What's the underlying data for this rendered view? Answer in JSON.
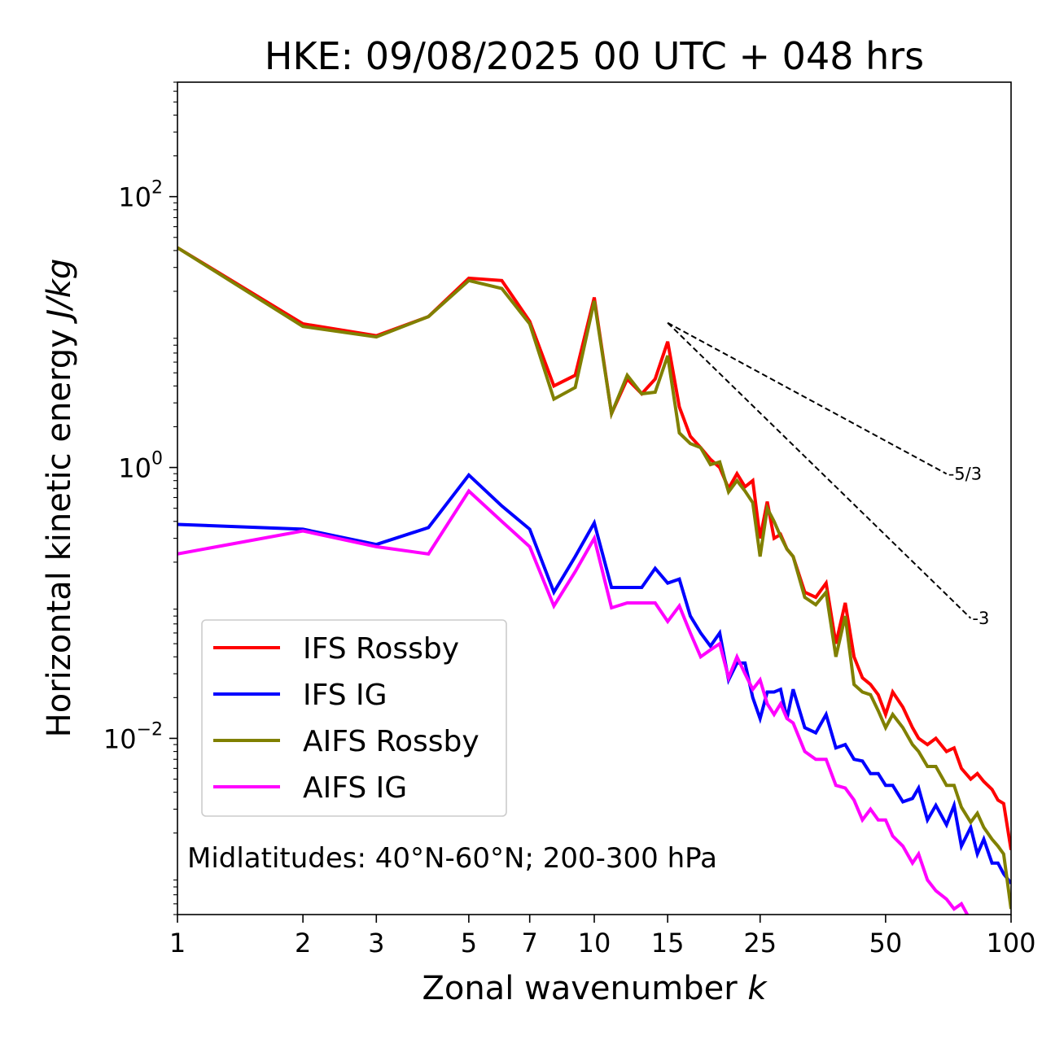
{
  "chart_data": {
    "type": "line",
    "title": "HKE: 09/08/2025 00 UTC + 048 hrs",
    "xlabel": "Zonal wavenumber",
    "xlabel_var": "k",
    "ylabel": "Horizontal kinetic energy",
    "ylabel_unit": "J/kg",
    "xscale": "log",
    "yscale": "log",
    "xlim": [
      1,
      100
    ],
    "ylim": [
      0.0005,
      700
    ],
    "xticks": [
      {
        "value": 1,
        "label": "1"
      },
      {
        "value": 2,
        "label": "2"
      },
      {
        "value": 3,
        "label": "3"
      },
      {
        "value": 5,
        "label": "5"
      },
      {
        "value": 7,
        "label": "7"
      },
      {
        "value": 10,
        "label": "10"
      },
      {
        "value": 15,
        "label": "15"
      },
      {
        "value": 25,
        "label": "25"
      },
      {
        "value": 50,
        "label": "50"
      },
      {
        "value": 100,
        "label": "100"
      }
    ],
    "yticks": [
      {
        "value": 100,
        "base": "10",
        "exp": "2"
      },
      {
        "value": 1,
        "base": "10",
        "exp": "0"
      },
      {
        "value": 0.01,
        "base": "10",
        "exp": "−2"
      }
    ],
    "annotation": "Midlatitudes: 40°N-60°N; 200-300 hPa",
    "legend_position": "lower-left",
    "reference_lines": [
      {
        "label": "-5/3",
        "slope": -1.6667,
        "x": [
          15,
          70
        ],
        "y_start": 11.7
      },
      {
        "label": "-3",
        "slope": -3,
        "x": [
          15,
          80
        ],
        "y_start": 11.7
      }
    ],
    "series": [
      {
        "name": "IFS Rossby",
        "color": "#ff0000",
        "x": [
          1,
          2,
          3,
          4,
          5,
          6,
          7,
          8,
          9,
          10,
          11,
          12,
          13,
          14,
          15,
          16,
          17,
          18,
          19,
          20,
          21,
          22,
          23,
          24,
          25,
          26,
          27,
          28,
          29,
          30,
          32,
          34,
          36,
          38,
          40,
          42,
          44,
          46,
          48,
          50,
          52,
          55,
          58,
          60,
          63,
          66,
          70,
          73,
          76,
          80,
          83,
          86,
          90,
          93,
          96,
          100
        ],
        "values": [
          42,
          11.5,
          9.4,
          13,
          25,
          24,
          12,
          4.0,
          4.8,
          18,
          2.5,
          4.5,
          3.5,
          4.5,
          8.5,
          2.8,
          1.7,
          1.4,
          1.15,
          1.0,
          0.7,
          0.9,
          0.72,
          0.8,
          0.3,
          0.56,
          0.3,
          0.32,
          0.25,
          0.22,
          0.12,
          0.11,
          0.14,
          0.05,
          0.1,
          0.04,
          0.028,
          0.025,
          0.021,
          0.015,
          0.022,
          0.017,
          0.012,
          0.01,
          0.009,
          0.01,
          0.008,
          0.0085,
          0.006,
          0.005,
          0.0055,
          0.0048,
          0.0042,
          0.0035,
          0.0033,
          0.0015
        ]
      },
      {
        "name": "IFS IG",
        "color": "#0000ff",
        "x": [
          1,
          2,
          3,
          4,
          5,
          6,
          7,
          8,
          9,
          10,
          11,
          12,
          13,
          14,
          15,
          16,
          17,
          18,
          19,
          20,
          21,
          22,
          23,
          24,
          25,
          26,
          27,
          28,
          29,
          30,
          32,
          34,
          36,
          38,
          40,
          42,
          44,
          46,
          48,
          50,
          52,
          55,
          58,
          60,
          63,
          66,
          70,
          73,
          76,
          80,
          83,
          86,
          90,
          93,
          96,
          100
        ],
        "values": [
          0.38,
          0.35,
          0.27,
          0.36,
          0.88,
          0.52,
          0.35,
          0.12,
          0.22,
          0.39,
          0.13,
          0.13,
          0.13,
          0.18,
          0.14,
          0.15,
          0.08,
          0.06,
          0.048,
          0.06,
          0.027,
          0.036,
          0.036,
          0.02,
          0.014,
          0.022,
          0.022,
          0.023,
          0.014,
          0.023,
          0.012,
          0.011,
          0.015,
          0.0085,
          0.009,
          0.007,
          0.0068,
          0.0055,
          0.0055,
          0.0045,
          0.0045,
          0.0034,
          0.0036,
          0.0043,
          0.0025,
          0.0032,
          0.0023,
          0.0032,
          0.0016,
          0.0022,
          0.0014,
          0.0018,
          0.0012,
          0.0012,
          0.001,
          0.00085
        ]
      },
      {
        "name": "AIFS Rossby",
        "color": "#808000",
        "x": [
          1,
          2,
          3,
          4,
          5,
          6,
          7,
          8,
          9,
          10,
          11,
          12,
          13,
          14,
          15,
          16,
          17,
          18,
          19,
          20,
          21,
          22,
          23,
          24,
          25,
          26,
          27,
          28,
          29,
          30,
          32,
          34,
          36,
          38,
          40,
          42,
          44,
          46,
          48,
          50,
          52,
          55,
          58,
          60,
          63,
          66,
          70,
          73,
          76,
          80,
          83,
          86,
          90,
          93,
          96,
          100
        ],
        "values": [
          42,
          11,
          9.2,
          13,
          24,
          21,
          11.5,
          3.2,
          3.9,
          17,
          2.5,
          4.8,
          3.5,
          3.6,
          6.7,
          1.8,
          1.5,
          1.4,
          1.05,
          1.1,
          0.66,
          0.8,
          0.67,
          0.55,
          0.22,
          0.5,
          0.4,
          0.31,
          0.25,
          0.22,
          0.11,
          0.097,
          0.12,
          0.04,
          0.08,
          0.025,
          0.022,
          0.021,
          0.016,
          0.012,
          0.015,
          0.012,
          0.009,
          0.008,
          0.0062,
          0.0062,
          0.0045,
          0.0045,
          0.0031,
          0.0024,
          0.0028,
          0.0022,
          0.0018,
          0.0016,
          0.0014,
          0.00055
        ]
      },
      {
        "name": "AIFS IG",
        "color": "#ff00ff",
        "x": [
          1,
          2,
          3,
          4,
          5,
          6,
          7,
          8,
          9,
          10,
          11,
          12,
          13,
          14,
          15,
          16,
          17,
          18,
          19,
          20,
          21,
          22,
          23,
          24,
          25,
          26,
          27,
          28,
          29,
          30,
          32,
          34,
          36,
          38,
          40,
          42,
          44,
          46,
          48,
          50,
          52,
          55,
          58,
          60,
          63,
          66,
          70,
          73,
          76,
          80
        ],
        "values": [
          0.23,
          0.34,
          0.26,
          0.23,
          0.67,
          0.4,
          0.26,
          0.095,
          0.17,
          0.3,
          0.092,
          0.1,
          0.1,
          0.1,
          0.073,
          0.095,
          0.06,
          0.04,
          0.045,
          0.05,
          0.028,
          0.04,
          0.03,
          0.023,
          0.027,
          0.018,
          0.015,
          0.018,
          0.014,
          0.013,
          0.008,
          0.007,
          0.007,
          0.0045,
          0.0043,
          0.0035,
          0.0025,
          0.003,
          0.0025,
          0.0025,
          0.0019,
          0.0016,
          0.0012,
          0.0014,
          0.0009,
          0.00075,
          0.00065,
          0.00055,
          0.0006,
          0.00045
        ]
      }
    ]
  }
}
